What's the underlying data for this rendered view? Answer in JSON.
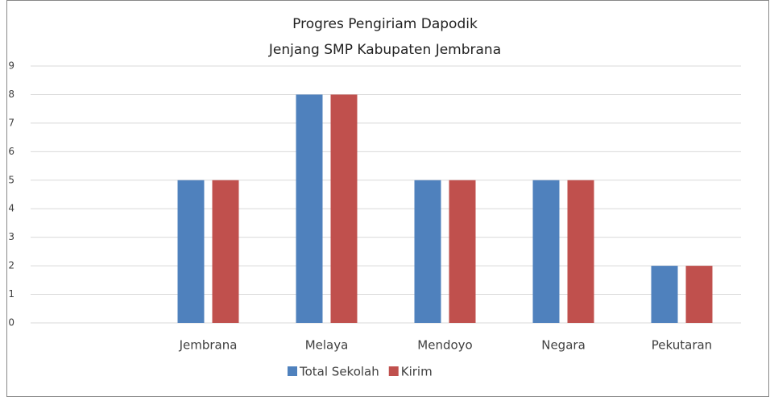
{
  "chart_data": {
    "type": "bar",
    "title": "Progres Pengiriam Dapodik",
    "subtitle": "Jenjang SMP Kabupaten Jembrana",
    "categories": [
      null,
      "Jembrana",
      "Melaya",
      "Mendoyo",
      "Negara",
      "Pekutaran"
    ],
    "series": [
      {
        "name": "Total Sekolah",
        "color": "#4f81bd",
        "values": [
          null,
          5,
          8,
          5,
          5,
          2
        ]
      },
      {
        "name": "Kirim",
        "color": "#c0504d",
        "values": [
          null,
          5,
          8,
          5,
          5,
          2
        ]
      }
    ],
    "ylim": [
      0,
      9
    ],
    "yticks": [
      0,
      1,
      2,
      3,
      4,
      5,
      6,
      7,
      8,
      9
    ],
    "grid": true,
    "legend": "bottom"
  }
}
